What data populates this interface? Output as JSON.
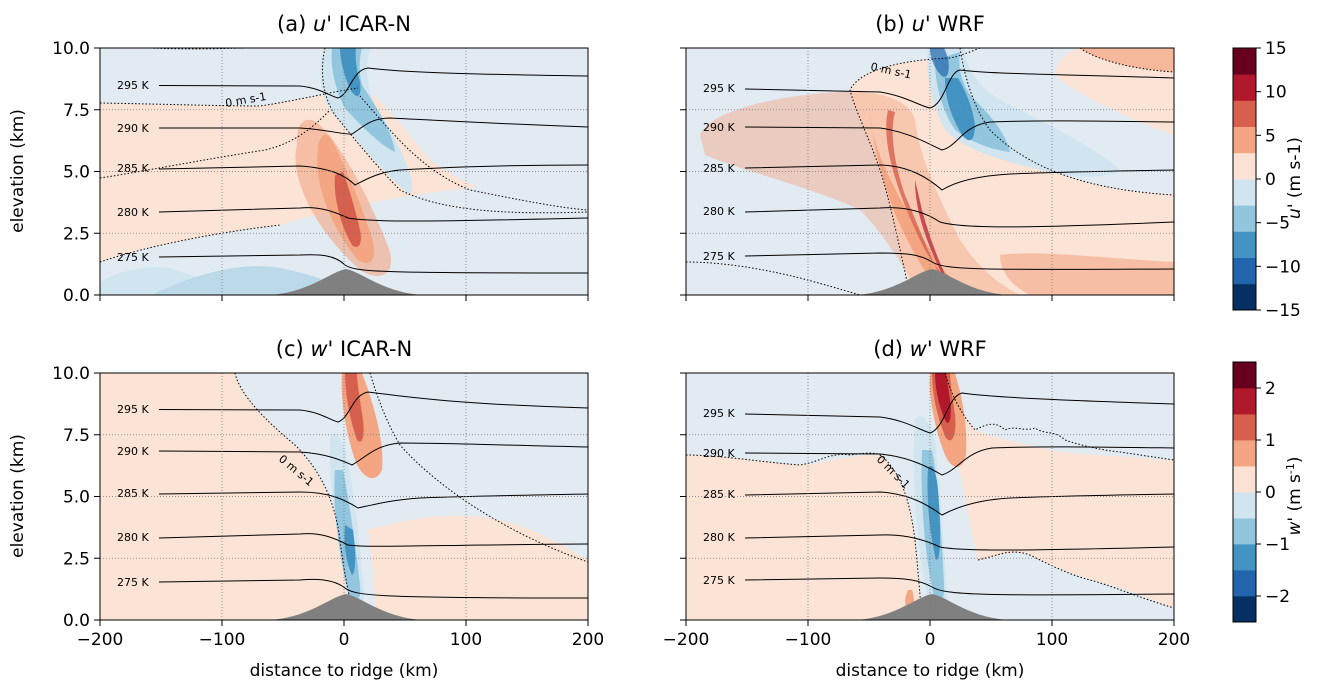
{
  "figure": {
    "shared_xlabel": "distance to ridge (km)",
    "shared_ylabel": "elevation (km)"
  },
  "chart_data": [
    {
      "type": "heatmap",
      "title": "(a) u' ICAR-N",
      "variable": "u",
      "model": "ICAR-N",
      "xlabel": "distance to ridge (km)",
      "ylabel": "elevation (km)",
      "xlim": [
        -200,
        200
      ],
      "ylim": [
        0,
        10
      ],
      "xticks": [
        "−200",
        "−100",
        "0",
        "100",
        "200"
      ],
      "yticks": [
        "0.0",
        "2.5",
        "5.0",
        "7.5",
        "10.0"
      ],
      "grid": true,
      "contour_labels": [
        "295 K",
        "290 K",
        "285 K",
        "280 K",
        "275 K"
      ],
      "theta_levels_K": [
        295,
        290,
        285,
        280,
        275
      ],
      "theta_heights_km": [
        8.55,
        6.9,
        5.15,
        3.35,
        1.55
      ],
      "zero_contour_label": "0 m s-1",
      "ridge_height_km": 1.0
    },
    {
      "type": "heatmap",
      "title": "(b) u' WRF",
      "variable": "u",
      "model": "WRF",
      "xlabel": "",
      "ylabel": "",
      "xlim": [
        -200,
        200
      ],
      "ylim": [
        0,
        10
      ],
      "grid": true,
      "contour_labels": [
        "295 K",
        "290 K",
        "285 K",
        "280 K",
        "275 K"
      ],
      "theta_levels_K": [
        295,
        290,
        285,
        280,
        275
      ],
      "theta_heights_km": [
        8.45,
        6.9,
        5.15,
        3.4,
        1.6
      ],
      "zero_contour_label": "0 m s-1",
      "ridge_height_km": 1.0
    },
    {
      "type": "heatmap",
      "title": "(c) w' ICAR-N",
      "variable": "w",
      "model": "ICAR-N",
      "xlabel": "distance to ridge (km)",
      "ylabel": "elevation (km)",
      "xlim": [
        -200,
        200
      ],
      "ylim": [
        0,
        10
      ],
      "xticks": [
        "−200",
        "−100",
        "0",
        "100",
        "200"
      ],
      "yticks": [
        "0.0",
        "2.5",
        "5.0",
        "7.5",
        "10.0"
      ],
      "grid": true,
      "contour_labels": [
        "295 K",
        "290 K",
        "285 K",
        "280 K",
        "275 K"
      ],
      "theta_levels_K": [
        295,
        290,
        285,
        280,
        275
      ],
      "theta_heights_km": [
        8.55,
        6.9,
        5.15,
        3.35,
        1.55
      ],
      "zero_contour_label": "0 m s-1",
      "ridge_height_km": 1.0
    },
    {
      "type": "heatmap",
      "title": "(d) w' WRF",
      "variable": "w",
      "model": "WRF",
      "xlabel": "distance to ridge (km)",
      "ylabel": "",
      "xlim": [
        -200,
        200
      ],
      "ylim": [
        0,
        10
      ],
      "xticks": [
        "−200",
        "−100",
        "0",
        "100",
        "200"
      ],
      "grid": true,
      "contour_labels": [
        "295 K",
        "290 K",
        "285 K",
        "280 K",
        "275 K"
      ],
      "theta_levels_K": [
        295,
        290,
        285,
        280,
        275
      ],
      "theta_heights_km": [
        8.45,
        6.9,
        5.15,
        3.4,
        1.6
      ],
      "zero_contour_label": "0 m s-1",
      "ridge_height_km": 1.0
    }
  ],
  "colorbars": {
    "u": {
      "label": "u' (m s-1)",
      "ticks": [
        "15",
        "10",
        "5",
        "0",
        "−5",
        "−10",
        "−15"
      ],
      "tick_values": [
        15,
        10,
        5,
        0,
        -5,
        -10,
        -15
      ],
      "range": [
        -15,
        15
      ]
    },
    "w": {
      "label": "w' (m s-1)",
      "ticks": [
        "2",
        "1",
        "0",
        "−1",
        "−2"
      ],
      "tick_values": [
        2,
        1,
        0,
        -1,
        -2
      ],
      "range": [
        -2.5,
        2.5
      ]
    }
  },
  "colors": {
    "diverging": [
      "#053061",
      "#2166ac",
      "#4393c3",
      "#92c5de",
      "#d1e5f0",
      "#fbe2d5",
      "#f4a582",
      "#d6604d",
      "#b2182b",
      "#67001f"
    ],
    "neutral_negative": "#e2ebf2",
    "neutral_positive": "#fbe3d6",
    "terrain": "#808080",
    "contour": "#000000"
  }
}
